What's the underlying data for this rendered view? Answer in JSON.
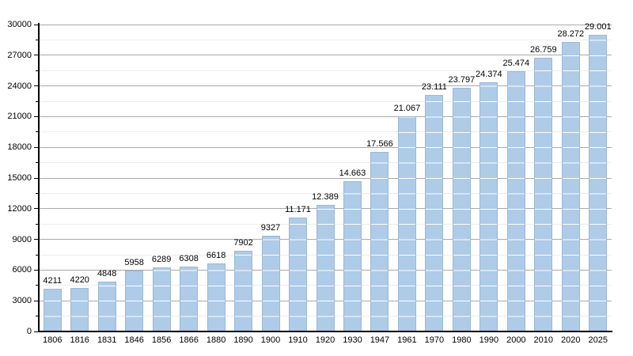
{
  "chart_data": {
    "type": "bar",
    "title": "",
    "xlabel": "",
    "ylabel": "",
    "legend": "none",
    "grid": "on",
    "categories": [
      "1806",
      "1816",
      "1831",
      "1846",
      "1856",
      "1866",
      "1880",
      "1890",
      "1900",
      "1910",
      "1920",
      "1930",
      "1947",
      "1961",
      "1970",
      "1980",
      "1990",
      "2000",
      "2010",
      "2020",
      "2025"
    ],
    "values": [
      4211,
      4220,
      4848,
      5958,
      6289,
      6308,
      6618,
      7902,
      9327,
      11171,
      12389,
      14663,
      17566,
      21067,
      23111,
      23797,
      24374,
      25474,
      26759,
      28272,
      29001
    ],
    "value_labels": [
      "4211",
      "4220",
      "4848",
      "5958",
      "6289",
      "6308",
      "6618",
      "7902",
      "9327",
      "11.171",
      "12.389",
      "14.663",
      "17.566",
      "21.067",
      "23.111",
      "23.797",
      "24.374",
      "25.474",
      "26.759",
      "28.272",
      "29.001"
    ],
    "ylim": [
      0,
      30000
    ],
    "y_ticks": [
      0,
      3000,
      6000,
      9000,
      12000,
      15000,
      18000,
      21000,
      24000,
      27000,
      30000
    ],
    "y_tick_labels": [
      "0",
      "3000",
      "6000",
      "9000",
      "12000",
      "15000",
      "18000",
      "21000",
      "24000",
      "27000",
      "30000"
    ],
    "minor_grid_step": 1500,
    "major_grid_step": 3000,
    "colors": {
      "background": "#ffffff",
      "bar_fill": "#aecbe8",
      "bar_border": "#9cb8d4",
      "bar_stripe": "#ffffff",
      "major_grid": "#aaaaaa",
      "minor_grid": "#ececec",
      "axis": "#000000",
      "text": "#000000"
    }
  }
}
